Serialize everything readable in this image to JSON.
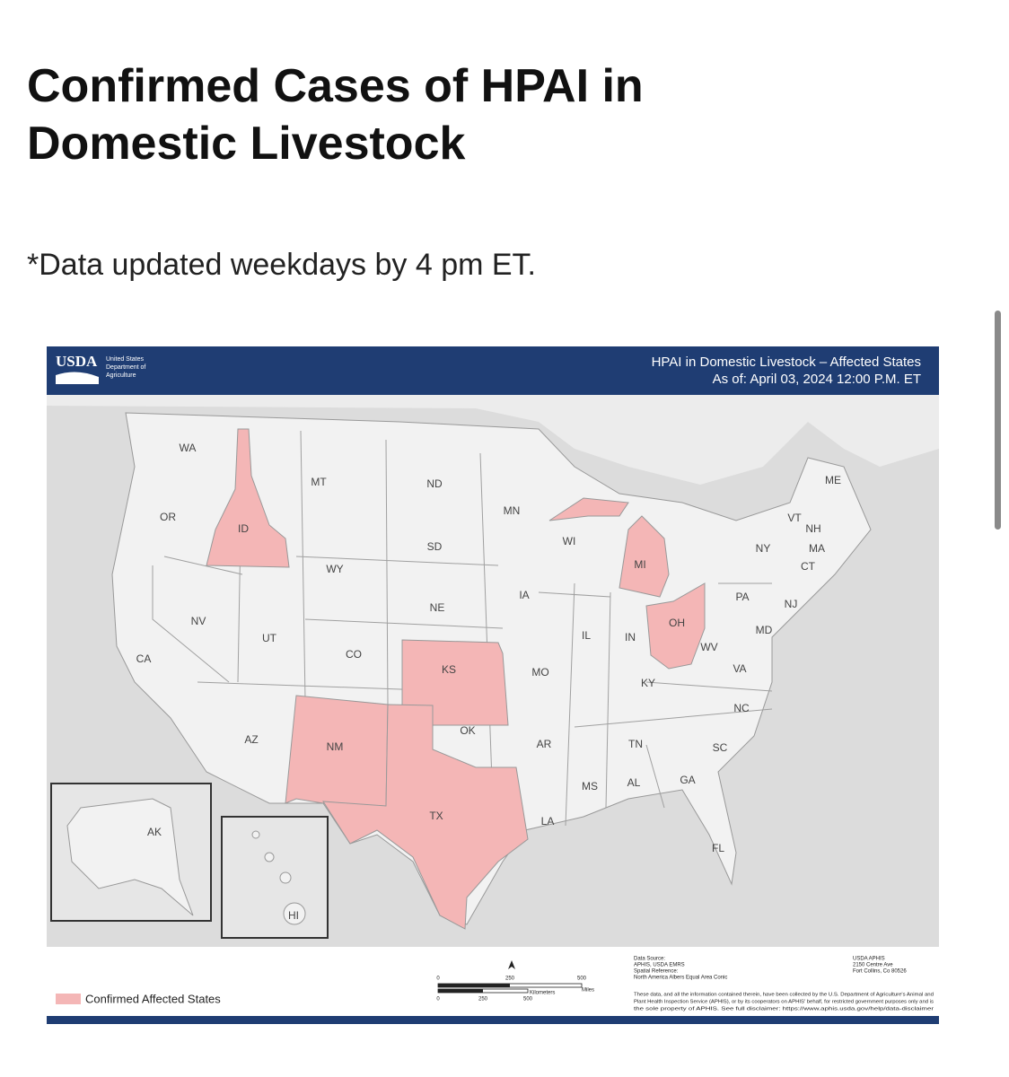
{
  "page": {
    "title": "Confirmed Cases of HPAI in Domestic Livestock",
    "note": "*Data updated weekdays by 4 pm ET."
  },
  "map": {
    "logo": {
      "mark": "USDA",
      "lines": [
        "United States",
        "Department of",
        "Agriculture"
      ]
    },
    "header": {
      "title": "HPAI in Domestic Livestock – Affected States",
      "as_of": "As of: April 03, 2024 12:00 P.M. ET"
    },
    "affected_color": "#f4b6b6",
    "states": [
      {
        "label": "WA",
        "affected": false
      },
      {
        "label": "OR",
        "affected": false
      },
      {
        "label": "CA",
        "affected": false
      },
      {
        "label": "NV",
        "affected": false
      },
      {
        "label": "ID",
        "affected": true
      },
      {
        "label": "MT",
        "affected": false
      },
      {
        "label": "WY",
        "affected": false
      },
      {
        "label": "UT",
        "affected": false
      },
      {
        "label": "AZ",
        "affected": false
      },
      {
        "label": "CO",
        "affected": false
      },
      {
        "label": "NM",
        "affected": true
      },
      {
        "label": "ND",
        "affected": false
      },
      {
        "label": "SD",
        "affected": false
      },
      {
        "label": "NE",
        "affected": false
      },
      {
        "label": "KS",
        "affected": true
      },
      {
        "label": "OK",
        "affected": false
      },
      {
        "label": "TX",
        "affected": true
      },
      {
        "label": "MN",
        "affected": false
      },
      {
        "label": "IA",
        "affected": false
      },
      {
        "label": "MO",
        "affected": false
      },
      {
        "label": "AR",
        "affected": false
      },
      {
        "label": "LA",
        "affected": false
      },
      {
        "label": "WI",
        "affected": false
      },
      {
        "label": "IL",
        "affected": false
      },
      {
        "label": "MI",
        "affected": true
      },
      {
        "label": "IN",
        "affected": false
      },
      {
        "label": "OH",
        "affected": true
      },
      {
        "label": "KY",
        "affected": false
      },
      {
        "label": "TN",
        "affected": false
      },
      {
        "label": "MS",
        "affected": false
      },
      {
        "label": "AL",
        "affected": false
      },
      {
        "label": "GA",
        "affected": false
      },
      {
        "label": "FL",
        "affected": false
      },
      {
        "label": "SC",
        "affected": false
      },
      {
        "label": "NC",
        "affected": false
      },
      {
        "label": "VA",
        "affected": false
      },
      {
        "label": "WV",
        "affected": false
      },
      {
        "label": "PA",
        "affected": false
      },
      {
        "label": "NY",
        "affected": false
      },
      {
        "label": "ME",
        "affected": false
      },
      {
        "label": "VT",
        "affected": false
      },
      {
        "label": "NH",
        "affected": false
      },
      {
        "label": "MA",
        "affected": false
      },
      {
        "label": "CT",
        "affected": false
      },
      {
        "label": "NJ",
        "affected": false
      },
      {
        "label": "MD",
        "affected": false
      },
      {
        "label": "AK",
        "affected": false
      },
      {
        "label": "HI",
        "affected": false
      }
    ],
    "legend": "Confirmed Affected States",
    "scale": {
      "miles": [
        "0",
        "250",
        "500",
        "Miles"
      ],
      "kilometers": [
        "0",
        "250",
        "500",
        "Kilometers"
      ]
    },
    "source": [
      "Data Source:",
      "APHIS, USDA EMRS",
      "Spatial Reference:",
      "North America Albers Equal Area Conic"
    ],
    "address": [
      "USDA APHIS",
      "2150 Centre Ave",
      "Fort Collins, Co 80526"
    ],
    "disclaimer": [
      "These data, and all the information contained therein, have been collected by the U.S. Department of Agriculture's Animal and",
      "Plant Health Inspection Service (APHIS), or by its cooperators on APHIS' behalf, for restricted government purposes only and is",
      "the sole property of APHIS. See full disclaimer: https://www.aphis.usda.gov/help/data-disclaimer"
    ]
  }
}
